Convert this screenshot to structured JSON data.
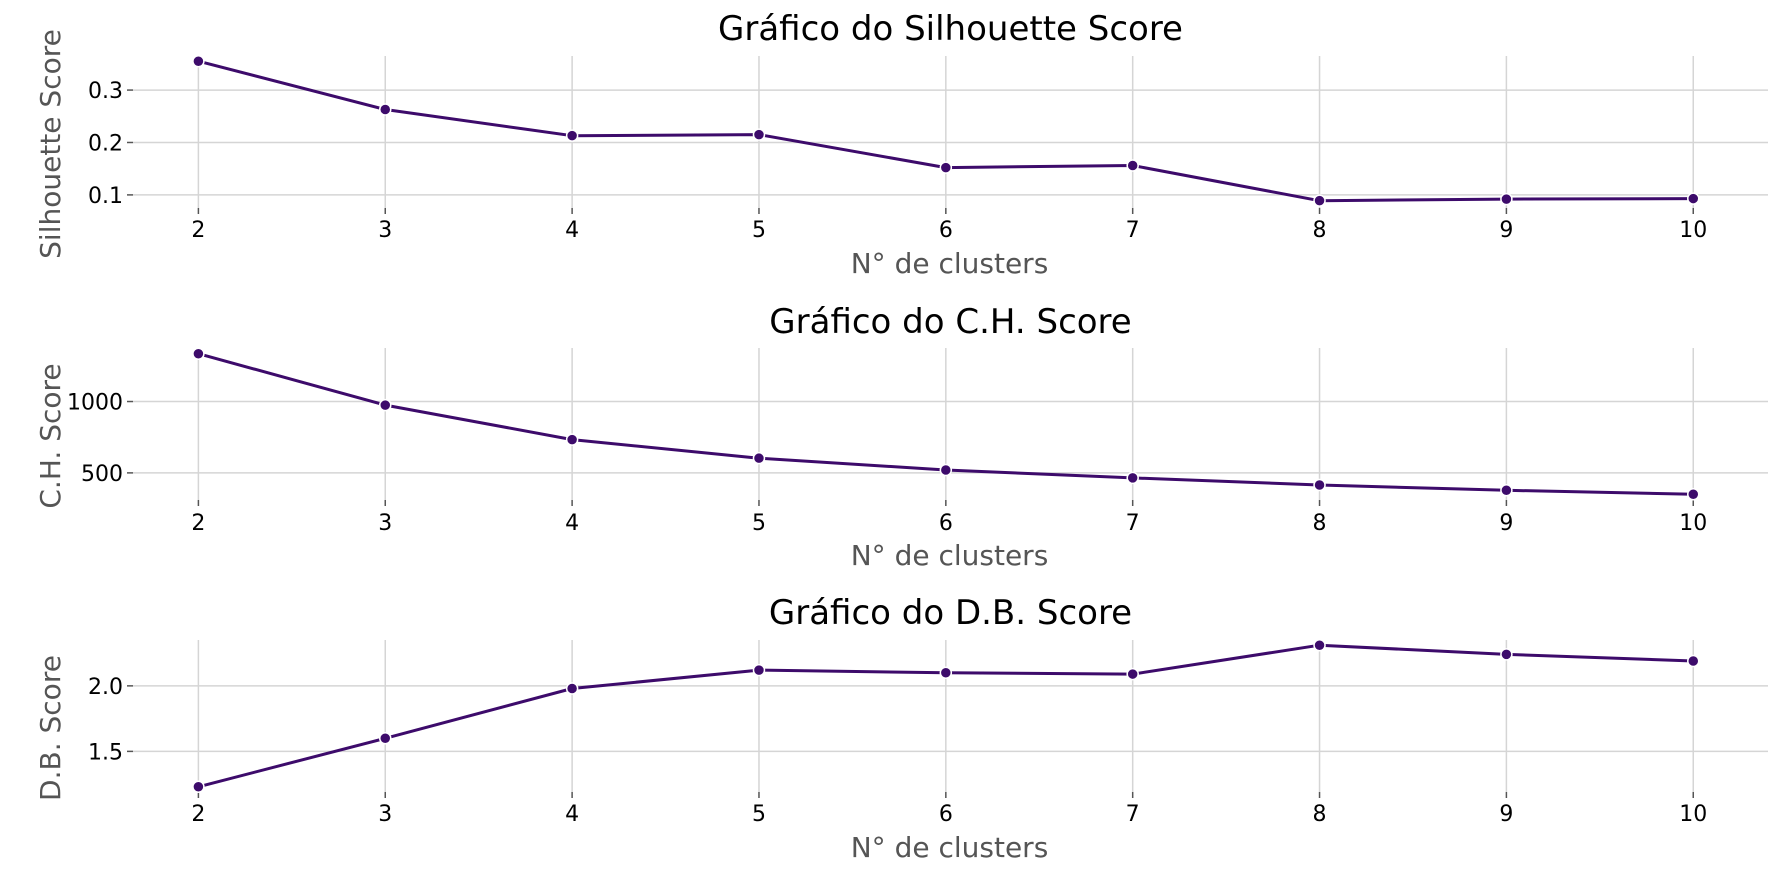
{
  "colors": {
    "line": "#3d0b6b",
    "marker": "#3d0b6b",
    "grid": "#d5d5d5"
  },
  "chart_data": [
    {
      "type": "line",
      "title": "Gráfico do Silhouette Score",
      "xlabel": "N° de clusters",
      "ylabel": "Silhouette Score",
      "x": [
        2,
        3,
        4,
        5,
        6,
        7,
        8,
        9,
        10
      ],
      "series": [
        {
          "values": [
            0.355,
            0.263,
            0.213,
            0.215,
            0.152,
            0.156,
            0.089,
            0.092,
            0.093
          ]
        }
      ],
      "xticks": [
        2,
        3,
        4,
        5,
        6,
        7,
        8,
        9,
        10
      ],
      "yticks": [
        0.1,
        0.2,
        0.3
      ],
      "ytick_labels": [
        "0.1",
        "0.2",
        "0.3"
      ],
      "xlim": [
        1.65,
        10.4
      ],
      "ylim": [
        0.075,
        0.365
      ],
      "grid": true,
      "markers": true
    },
    {
      "type": "line",
      "title": "Gráfico do C.H. Score",
      "xlabel": "N° de clusters",
      "ylabel": "C.H. Score",
      "x": [
        2,
        3,
        4,
        5,
        6,
        7,
        8,
        9,
        10
      ],
      "series": [
        {
          "values": [
            1335,
            975,
            733,
            603,
            520,
            465,
            415,
            378,
            350
          ]
        }
      ],
      "xticks": [
        2,
        3,
        4,
        5,
        6,
        7,
        8,
        9,
        10
      ],
      "yticks": [
        500,
        1000
      ],
      "ytick_labels": [
        "500",
        "1000"
      ],
      "xlim": [
        1.65,
        10.4
      ],
      "ylim": [
        310,
        1375
      ],
      "grid": true,
      "markers": true
    },
    {
      "type": "line",
      "title": "Gráfico do D.B. Score",
      "xlabel": "N° de clusters",
      "ylabel": "D.B. Score",
      "x": [
        2,
        3,
        4,
        5,
        6,
        7,
        8,
        9,
        10
      ],
      "series": [
        {
          "values": [
            1.23,
            1.6,
            1.98,
            2.12,
            2.1,
            2.09,
            2.31,
            2.24,
            2.19
          ]
        }
      ],
      "xticks": [
        2,
        3,
        4,
        5,
        6,
        7,
        8,
        9,
        10
      ],
      "yticks": [
        1.5,
        2.0
      ],
      "ytick_labels": [
        "1.5",
        "2.0"
      ],
      "xlim": [
        1.65,
        10.4
      ],
      "ylim": [
        1.19,
        2.35
      ],
      "grid": true,
      "markers": true
    }
  ]
}
